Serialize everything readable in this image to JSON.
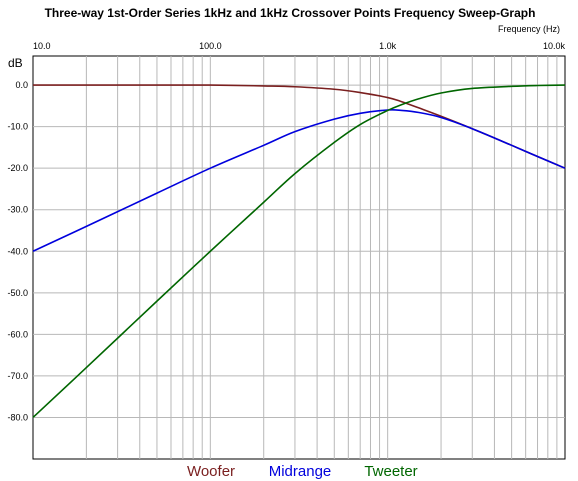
{
  "chart_data": {
    "type": "line",
    "title": "Three-way 1st-Order Series 1kHz and 1kHz Crossover Points Frequency Sweep-Graph",
    "xlabel": "Frequency  (Hz)",
    "ylabel": "dB",
    "xscale": "log",
    "xlim": [
      10,
      10000
    ],
    "ylim": [
      -90,
      7
    ],
    "x_ticks": [
      10,
      100,
      1000,
      10000
    ],
    "x_tick_labels": [
      "10.0",
      "100.0",
      "1.0k",
      "10.0k"
    ],
    "y_ticks": [
      0,
      -10,
      -20,
      -30,
      -40,
      -50,
      -60,
      -70,
      -80
    ],
    "y_tick_labels": [
      "0.0",
      "-10.0",
      "-20.0",
      "-30.0",
      "-40.0",
      "-50.0",
      "-60.0",
      "-70.0",
      "-80.0"
    ],
    "grid": true,
    "legend_position": "bottom",
    "x": [
      10,
      20,
      50,
      100,
      200,
      300,
      500,
      700,
      1000,
      1200,
      1500,
      2000,
      3000,
      5000,
      7000,
      10000
    ],
    "series": [
      {
        "name": "Woofer",
        "color": "#7a1f1f",
        "values": [
          0,
          0,
          0,
          0,
          -0.2,
          -0.4,
          -1.0,
          -1.8,
          -3.0,
          -4.0,
          -5.5,
          -7.5,
          -10.5,
          -14.5,
          -17.2,
          -20.0
        ]
      },
      {
        "name": "Midrange",
        "color": "#0000dd",
        "values": [
          -40.0,
          -34.0,
          -26.0,
          -20.0,
          -14.5,
          -11.2,
          -8.2,
          -6.8,
          -6.0,
          -6.1,
          -6.6,
          -7.8,
          -10.5,
          -14.5,
          -17.2,
          -20.0
        ]
      },
      {
        "name": "Tweeter",
        "color": "#006600",
        "values": [
          -80.0,
          -68.0,
          -52.0,
          -40.0,
          -28.2,
          -21.3,
          -13.8,
          -9.5,
          -6.1,
          -4.7,
          -3.3,
          -1.9,
          -0.8,
          -0.3,
          -0.1,
          0.0
        ]
      }
    ]
  }
}
